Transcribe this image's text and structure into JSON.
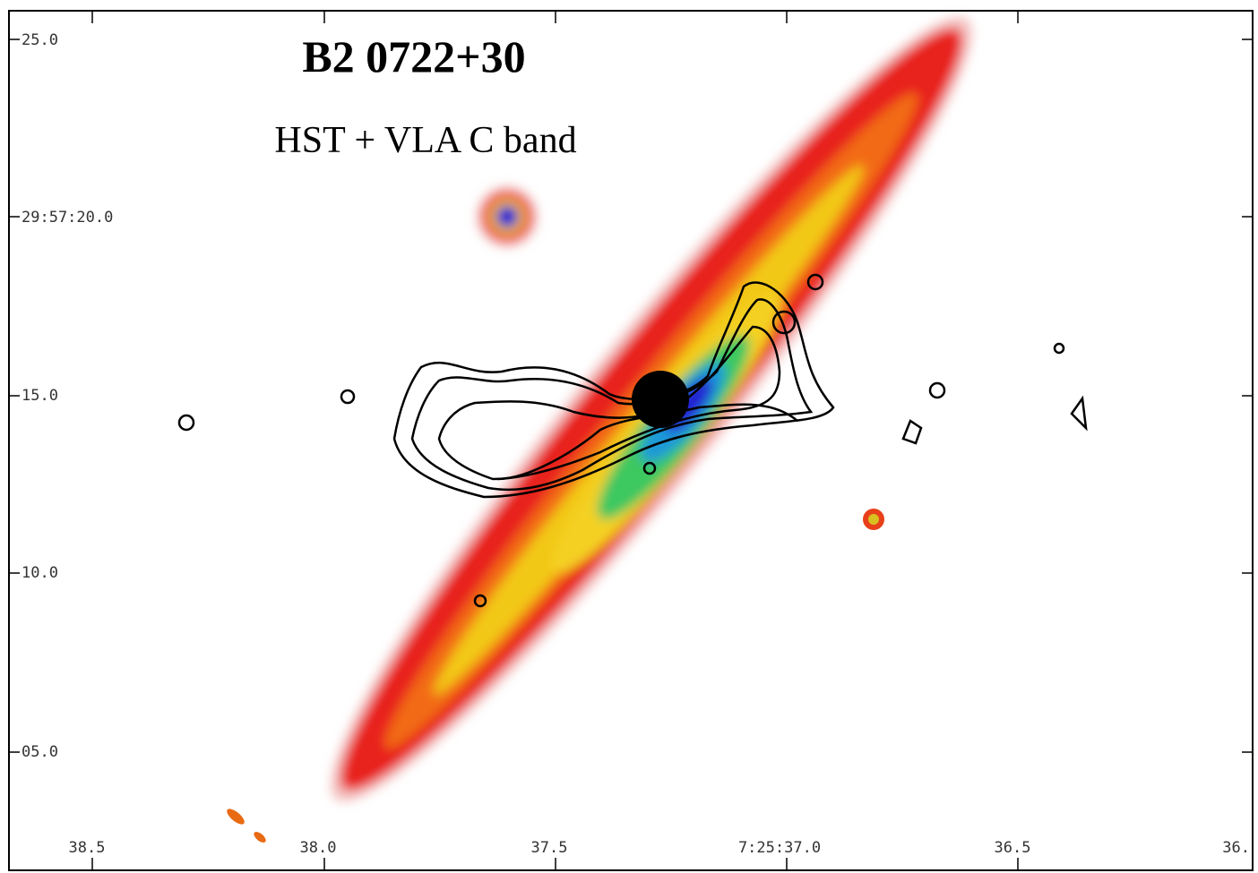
{
  "title": "B2 0722+30",
  "subtitle": "HST + VLA C band",
  "y_axis": {
    "labels": [
      "25.0",
      "29:57:20.0",
      "15.0",
      "10.0",
      "05.0"
    ]
  },
  "x_axis": {
    "labels": [
      "38.5",
      "38.0",
      "37.5",
      "7:25:37.0",
      "36.5",
      "36."
    ]
  }
}
